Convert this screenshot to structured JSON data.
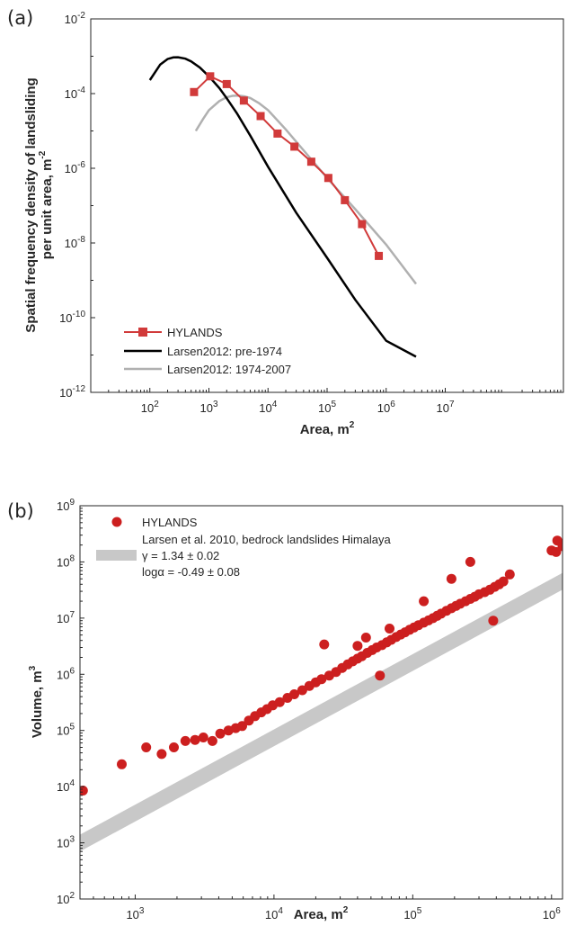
{
  "chart_data": [
    {
      "panel_label": "(a)",
      "type": "line",
      "xlabel": "Area, m",
      "xlabel_sup": "2",
      "ylabel_line1": "Spatial frequency density of landsliding",
      "ylabel_line2": "per unit area, m",
      "ylabel_sup": "-2",
      "xscale": "log",
      "yscale": "log",
      "xlim": [
        10,
        1000000000
      ],
      "ylim": [
        1e-12,
        0.01
      ],
      "x_ticks": [
        {
          "base": "10",
          "exp": "2"
        },
        {
          "base": "10",
          "exp": "3"
        },
        {
          "base": "10",
          "exp": "4"
        },
        {
          "base": "10",
          "exp": "5"
        },
        {
          "base": "10",
          "exp": "6"
        },
        {
          "base": "10",
          "exp": "7"
        }
      ],
      "y_ticks": [
        {
          "base": "10",
          "exp": "-12"
        },
        {
          "base": "10",
          "exp": "-10"
        },
        {
          "base": "10",
          "exp": "-8"
        },
        {
          "base": "10",
          "exp": "-6"
        },
        {
          "base": "10",
          "exp": "-4"
        },
        {
          "base": "10",
          "exp": "-2"
        }
      ],
      "legend_position": "bottom-left",
      "series": [
        {
          "name": "HYLANDS",
          "color": "#d13a3a",
          "marker": "square",
          "x": [
            560,
            1050,
            2000,
            3900,
            7500,
            14500,
            28000,
            54000,
            105000,
            200000,
            390000,
            750000
          ],
          "y": [
            0.00011,
            0.00029,
            0.00018,
            6.5e-05,
            2.5e-05,
            8.5e-06,
            3.8e-06,
            1.5e-06,
            5.5e-07,
            1.4e-07,
            3.2e-08,
            4.5e-09
          ]
        },
        {
          "name": "Larsen2012: pre-1974",
          "color": "#000000",
          "marker": "none",
          "x": [
            100,
            150,
            200,
            250,
            300,
            400,
            500,
            700,
            1000,
            1500,
            2000,
            3000,
            5000,
            10000,
            30000,
            100000,
            300000,
            1000000,
            3200000
          ],
          "y": [
            0.00023,
            0.0006,
            0.00084,
            0.00093,
            0.00094,
            0.00086,
            0.00073,
            0.0005,
            0.00029,
            0.00014,
            7.5e-05,
            2.9e-05,
            7.5e-06,
            1.1e-06,
            6.5e-08,
            4e-09,
            3e-10,
            2.4e-11,
            9e-12
          ]
        },
        {
          "name": "Larsen2012: 1974-2007",
          "color": "#b0b0b0",
          "marker": "none",
          "x": [
            600,
            800,
            1000,
            1500,
            2000,
            2500,
            3200,
            4000,
            5000,
            7000,
            10000,
            20000,
            50000,
            100000,
            300000,
            1000000,
            3200000
          ],
          "y": [
            1e-05,
            2.1e-05,
            3.6e-05,
            6.3e-05,
            8e-05,
            8.7e-05,
            8.8e-05,
            8.4e-05,
            7.6e-05,
            5.6e-05,
            3.6e-05,
            1.1e-05,
            2e-06,
            5.5e-07,
            8e-08,
            9e-09,
            8e-10
          ]
        }
      ]
    },
    {
      "panel_label": "(b)",
      "type": "scatter",
      "xlabel": "Area, m",
      "xlabel_sup": "2",
      "ylabel": "Volume, m",
      "ylabel_sup": "3",
      "xscale": "log",
      "yscale": "log",
      "xlim": [
        400,
        1200000
      ],
      "ylim": [
        100,
        1000000000
      ],
      "x_ticks": [
        {
          "base": "10",
          "exp": "3"
        },
        {
          "base": "10",
          "exp": "4"
        },
        {
          "base": "10",
          "exp": "5"
        },
        {
          "base": "10",
          "exp": "6"
        }
      ],
      "y_ticks": [
        {
          "base": "10",
          "exp": "2"
        },
        {
          "base": "10",
          "exp": "3"
        },
        {
          "base": "10",
          "exp": "4"
        },
        {
          "base": "10",
          "exp": "5"
        },
        {
          "base": "10",
          "exp": "6"
        },
        {
          "base": "10",
          "exp": "7"
        },
        {
          "base": "10",
          "exp": "8"
        },
        {
          "base": "10",
          "exp": "9"
        }
      ],
      "legend_position": "top-left",
      "legend": {
        "hylands": "HYLANDS",
        "larsen": "Larsen et al. 2010, bedrock landslides Himalaya",
        "gamma_line": "γ = 1.34 ± 0.02",
        "alpha_line": "logα = -0.49 ± 0.08"
      },
      "series": [
        {
          "name": "HYLANDS",
          "color": "#cc1f1f",
          "x": [
            420,
            800,
            1200,
            1550,
            1900,
            2300,
            2700,
            3100,
            3600,
            4100,
            4700,
            5300,
            5900,
            6600,
            7300,
            8100,
            8900,
            9800,
            11000,
            12500,
            14000,
            16000,
            18000,
            20000,
            22000,
            23000,
            25000,
            28000,
            31000,
            34000,
            37000,
            40000,
            43000,
            47000,
            51000,
            55000,
            60000,
            65000,
            70000,
            76000,
            82000,
            88000,
            95000,
            102000,
            110000,
            120000,
            130000,
            140000,
            150000,
            160000,
            175000,
            190000,
            205000,
            220000,
            240000,
            260000,
            280000,
            300000,
            330000,
            360000,
            390000,
            420000,
            450000,
            500000,
            1000000,
            1100000,
            1200000,
            58000,
            68000,
            40000,
            46000,
            120000,
            190000,
            380000,
            260000,
            1080000
          ],
          "y": [
            8500,
            25000,
            50000,
            38000,
            50000,
            65000,
            68000,
            75000,
            65000,
            88000,
            100000,
            110000,
            120000,
            150000,
            180000,
            210000,
            240000,
            280000,
            320000,
            380000,
            440000,
            520000,
            620000,
            720000,
            820000,
            3400000,
            950000,
            1100000,
            1300000,
            1500000,
            1700000,
            1900000,
            2100000,
            2400000,
            2700000,
            3000000,
            3300000,
            3700000,
            4100000,
            4600000,
            5100000,
            5600000,
            6200000,
            6800000,
            7500000,
            8300000,
            9100000,
            10000000,
            11000000,
            12000000,
            13500000,
            15000000,
            16500000,
            18000000,
            20000000,
            22000000,
            24000000,
            26500000,
            29000000,
            32000000,
            36000000,
            40000000,
            45000000,
            60000000,
            160000000,
            240000000,
            190000000,
            950000,
            6500000,
            3200000,
            4500000,
            20000000,
            50000000,
            9000000,
            100000000,
            150000000
          ]
        }
      ],
      "band": {
        "gamma": 1.34,
        "log_alpha": -0.49,
        "width_dex": 0.15,
        "color": "#c8c8c8"
      }
    }
  ]
}
